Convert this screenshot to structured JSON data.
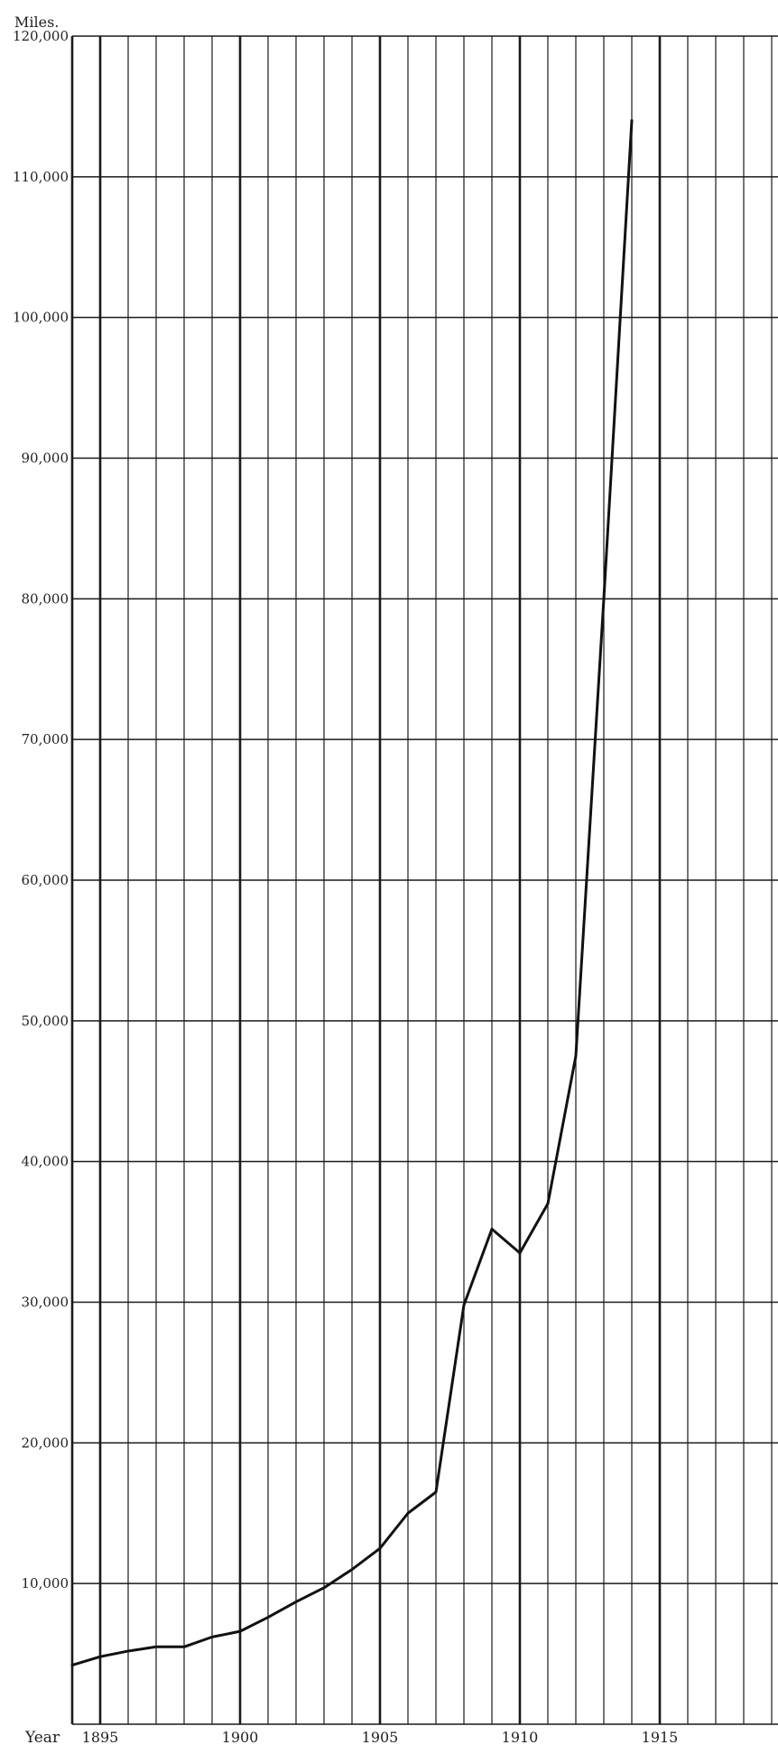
{
  "chart_data": {
    "type": "line",
    "title": "",
    "ylabel": "Miles.",
    "xlabel": "Year",
    "xlim": [
      1894,
      1919
    ],
    "ylim": [
      0,
      120000
    ],
    "grid": true,
    "x_ticks": [
      1895,
      1900,
      1905,
      1910,
      1915
    ],
    "y_ticks": [
      10000,
      20000,
      30000,
      40000,
      50000,
      60000,
      70000,
      80000,
      90000,
      100000,
      110000,
      120000
    ],
    "x_tick_labels": [
      "1895",
      "1900",
      "1905",
      "1910",
      "1915"
    ],
    "y_tick_labels": [
      "10,000",
      "20,000",
      "30,000",
      "40,000",
      "50,000",
      "60,000",
      "70,000",
      "80,000",
      "90,000",
      "100,000",
      "110,000",
      "120,000"
    ],
    "x": [
      1894,
      1895,
      1896,
      1897,
      1898,
      1899,
      1900,
      1901,
      1902,
      1903,
      1904,
      1905,
      1906,
      1907,
      1908,
      1909,
      1910,
      1911,
      1912,
      1913,
      1914
    ],
    "values": [
      4200,
      4800,
      5200,
      5500,
      5500,
      6200,
      6600,
      7600,
      8700,
      9700,
      11000,
      12500,
      15000,
      16500,
      29800,
      35200,
      33500,
      37000,
      47500,
      80000,
      114000
    ]
  }
}
